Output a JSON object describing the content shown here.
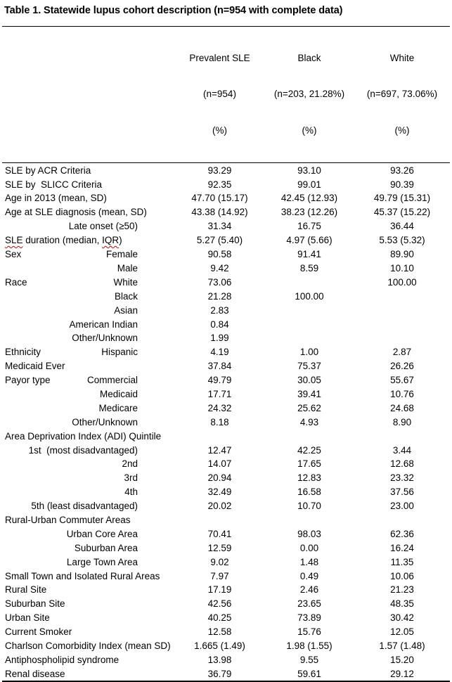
{
  "title": "Table 1. Statewide lupus cohort description (n=954 with complete data)",
  "spellcheck_color": "#cc0000",
  "table": {
    "columns": [
      {
        "lines": [
          "Prevalent SLE",
          "(n=954)",
          "(%)"
        ]
      },
      {
        "lines": [
          "Black",
          "(n=203, 21.28%)",
          "(%)"
        ]
      },
      {
        "lines": [
          "White",
          "(n=697, 73.06%)",
          "(%)"
        ]
      }
    ],
    "rows": [
      {
        "label": "SLE by ACR Criteria",
        "sublabel": "",
        "values": [
          "93.29",
          "93.10",
          "93.26"
        ]
      },
      {
        "label": "SLE by  SLICC Criteria",
        "sublabel": "",
        "values": [
          "92.35",
          "99.01",
          "90.39"
        ]
      },
      {
        "label": "Age in 2013 (mean, SD)",
        "sublabel": "",
        "values": [
          "47.70 (15.17)",
          "42.45 (12.93)",
          "49.79 (15.31)"
        ]
      },
      {
        "label": "Age at SLE diagnosis (mean, SD)",
        "sublabel": "",
        "values": [
          "43.38 (14.92)",
          "38.23 (12.26)",
          "45.37 (15.22)"
        ]
      },
      {
        "label": "",
        "sublabel": "Late onset (≥50)",
        "values": [
          "31.34",
          "16.75",
          "36.44"
        ]
      },
      {
        "label": "SLE duration (median, IQR)",
        "label_segments": [
          [
            "SLE",
            true
          ],
          [
            " duration (median, ",
            false
          ],
          [
            "IQR",
            true
          ],
          [
            ")",
            false
          ]
        ],
        "sublabel": "",
        "values": [
          "5.27 (5.40)",
          "4.97 (5.66)",
          "5.53 (5.32)"
        ]
      },
      {
        "label": "Sex",
        "sublabel": "Female",
        "values": [
          "90.58",
          "91.41",
          "89.90"
        ]
      },
      {
        "label": "",
        "sublabel": "Male",
        "values": [
          "9.42",
          "8.59",
          "10.10"
        ]
      },
      {
        "label": "Race",
        "sublabel": "White",
        "values": [
          "73.06",
          "",
          "100.00"
        ]
      },
      {
        "label": "",
        "sublabel": "Black",
        "values": [
          "21.28",
          "100.00",
          ""
        ]
      },
      {
        "label": "",
        "sublabel": "Asian",
        "values": [
          "2.83",
          "",
          ""
        ]
      },
      {
        "label": "",
        "sublabel": "American Indian",
        "values": [
          "0.84",
          "",
          ""
        ]
      },
      {
        "label": "",
        "sublabel": "Other/Unknown",
        "values": [
          "1.99",
          "",
          ""
        ]
      },
      {
        "label": "Ethnicity",
        "sublabel": "Hispanic",
        "values": [
          "4.19",
          "1.00",
          "2.87"
        ]
      },
      {
        "label": "Medicaid Ever",
        "sublabel": "",
        "values": [
          "37.84",
          "75.37",
          "26.26"
        ]
      },
      {
        "label": "Payor type",
        "sublabel": "Commercial",
        "values": [
          "49.79",
          "30.05",
          "55.67"
        ]
      },
      {
        "label": "",
        "sublabel": "Medicaid",
        "values": [
          "17.71",
          "39.41",
          "10.76"
        ]
      },
      {
        "label": "",
        "sublabel": "Medicare",
        "values": [
          "24.32",
          "25.62",
          "24.68"
        ]
      },
      {
        "label": "",
        "sublabel": "Other/Unknown",
        "values": [
          "8.18",
          "4.93",
          "8.90"
        ]
      },
      {
        "label": "Area Deprivation Index (ADI) Quintile",
        "sublabel": "",
        "values": [
          "",
          "",
          ""
        ]
      },
      {
        "label": "",
        "sublabel": "1st  (most disadvantaged)",
        "values": [
          "12.47",
          "42.25",
          "3.44"
        ]
      },
      {
        "label": "",
        "sublabel": "2nd",
        "values": [
          "14.07",
          "17.65",
          "12.68"
        ]
      },
      {
        "label": "",
        "sublabel": "3rd",
        "values": [
          "20.94",
          "12.83",
          "23.32"
        ]
      },
      {
        "label": "",
        "sublabel": "4th",
        "values": [
          "32.49",
          "16.58",
          "37.56"
        ]
      },
      {
        "label": "",
        "sublabel": "5th (least disadvantaged)",
        "values": [
          "20.02",
          "10.70",
          "23.00"
        ]
      },
      {
        "label": "Rural-Urban Commuter Areas",
        "sublabel": "",
        "values": [
          "",
          "",
          ""
        ]
      },
      {
        "label": "",
        "sublabel": "Urban Core Area",
        "values": [
          "70.41",
          "98.03",
          "62.36"
        ]
      },
      {
        "label": "",
        "sublabel": "Suburban Area",
        "values": [
          "12.59",
          "0.00",
          "16.24"
        ]
      },
      {
        "label": "",
        "sublabel": "Large Town Area",
        "values": [
          "9.02",
          "1.48",
          "11.35"
        ]
      },
      {
        "label": "",
        "sublabel": "Small Town and Isolated Rural Areas",
        "values": [
          "7.97",
          "0.49",
          "10.06"
        ]
      },
      {
        "label": "Rural Site",
        "sublabel": "",
        "values": [
          "17.19",
          "2.46",
          "21.23"
        ]
      },
      {
        "label": "Suburban Site",
        "sublabel": "",
        "values": [
          "42.56",
          "23.65",
          "48.35"
        ]
      },
      {
        "label": "Urban Site",
        "sublabel": "",
        "values": [
          "40.25",
          "73.89",
          "30.42"
        ]
      },
      {
        "label": "Current Smoker",
        "sublabel": "",
        "values": [
          "12.58",
          "15.76",
          "12.05"
        ]
      },
      {
        "label": "Charlson Comorbidity Index (mean SD)",
        "sublabel": "",
        "values": [
          "1.665 (1.49)",
          "1.98 (1.55)",
          "1.57 (1.48)"
        ]
      },
      {
        "label": "Antiphospholipid syndrome",
        "sublabel": "",
        "values": [
          "13.98",
          "9.55",
          "15.20"
        ]
      },
      {
        "label": "Renal disease",
        "sublabel": "",
        "values": [
          "36.79",
          "59.61",
          "29.12"
        ]
      }
    ]
  }
}
